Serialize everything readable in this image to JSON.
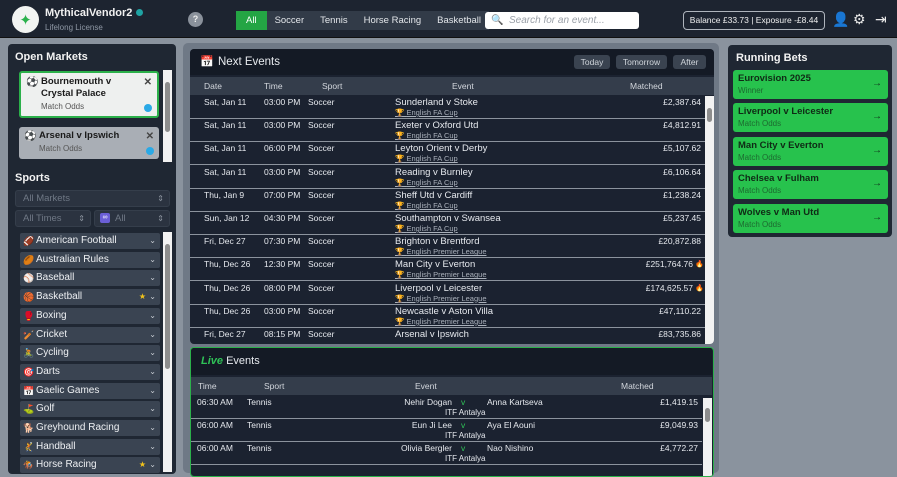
{
  "header": {
    "app_name": "MythicalVendor2",
    "license": "Lifelong License",
    "help": "?",
    "tabs": [
      "All",
      "Soccer",
      "Tennis",
      "Horse Racing",
      "Basketball"
    ],
    "search_placeholder": "Search for an event...",
    "balance": "Balance £33.73  |  Exposure -£8.44"
  },
  "open_markets": {
    "title": "Open Markets",
    "items": [
      {
        "event": "Bournemouth v Crystal Palace",
        "market": "Match Odds"
      },
      {
        "event": "Arsenal v Ipswich",
        "market": "Match Odds"
      }
    ]
  },
  "sports": {
    "title": "Sports",
    "markets_select": "All Markets",
    "times_select": "All Times",
    "type_select": "All",
    "items": [
      {
        "name": "American Football",
        "icon": "🏈"
      },
      {
        "name": "Australian Rules",
        "icon": "🏉"
      },
      {
        "name": "Baseball",
        "icon": "⚾"
      },
      {
        "name": "Basketball",
        "icon": "🏀",
        "starred": true
      },
      {
        "name": "Boxing",
        "icon": "🥊"
      },
      {
        "name": "Cricket",
        "icon": "🏏"
      },
      {
        "name": "Cycling",
        "icon": "🚴"
      },
      {
        "name": "Darts",
        "icon": "🎯"
      },
      {
        "name": "Gaelic Games",
        "icon": "📅"
      },
      {
        "name": "Golf",
        "icon": "⛳"
      },
      {
        "name": "Greyhound Racing",
        "icon": "🐕"
      },
      {
        "name": "Handball",
        "icon": "🤾"
      },
      {
        "name": "Horse Racing",
        "icon": "🏇",
        "starred": true
      }
    ]
  },
  "next_events": {
    "title": "Next Events",
    "filters": [
      "Today",
      "Tomorrow",
      "After"
    ],
    "columns": [
      "Date",
      "Time",
      "Sport",
      "Event",
      "Matched"
    ],
    "rows": [
      {
        "date": "Sat, Jan 11",
        "time": "03:00 PM",
        "sport": "Soccer",
        "event": "Sunderland v Stoke",
        "competition": "English FA Cup",
        "matched": "£2,387.64"
      },
      {
        "date": "Sat, Jan 11",
        "time": "03:00 PM",
        "sport": "Soccer",
        "event": "Exeter v Oxford Utd",
        "competition": "English FA Cup",
        "matched": "£4,812.91"
      },
      {
        "date": "Sat, Jan 11",
        "time": "06:00 PM",
        "sport": "Soccer",
        "event": "Leyton Orient v Derby",
        "competition": "English FA Cup",
        "matched": "£5,107.62"
      },
      {
        "date": "Sat, Jan 11",
        "time": "03:00 PM",
        "sport": "Soccer",
        "event": "Reading v Burnley",
        "competition": "English FA Cup",
        "matched": "£6,106.64"
      },
      {
        "date": "Thu, Jan 9",
        "time": "07:00 PM",
        "sport": "Soccer",
        "event": "Sheff Utd v Cardiff",
        "competition": "English FA Cup",
        "matched": "£1,238.24"
      },
      {
        "date": "Sun, Jan 12",
        "time": "04:30 PM",
        "sport": "Soccer",
        "event": "Southampton v Swansea",
        "competition": "English FA Cup",
        "matched": "£5,237.45"
      },
      {
        "date": "Fri, Dec 27",
        "time": "07:30 PM",
        "sport": "Soccer",
        "event": "Brighton v Brentford",
        "competition": "English Premier League",
        "matched": "£20,872.88"
      },
      {
        "date": "Thu, Dec 26",
        "time": "12:30 PM",
        "sport": "Soccer",
        "event": "Man City v Everton",
        "competition": "English Premier League",
        "matched": "£251,764.76",
        "hot": true
      },
      {
        "date": "Thu, Dec 26",
        "time": "08:00 PM",
        "sport": "Soccer",
        "event": "Liverpool v Leicester",
        "competition": "English Premier League",
        "matched": "£174,625.57",
        "hot": true
      },
      {
        "date": "Thu, Dec 26",
        "time": "03:00 PM",
        "sport": "Soccer",
        "event": "Newcastle v Aston Villa",
        "competition": "English Premier League",
        "matched": "£47,110.22"
      },
      {
        "date": "Fri, Dec 27",
        "time": "08:15 PM",
        "sport": "Soccer",
        "event": "Arsenal v Ipswich",
        "competition": "",
        "matched": "£83,735.86"
      }
    ]
  },
  "live_events": {
    "title_live": "Live",
    "title_rest": "Events",
    "columns": [
      "Time",
      "Sport",
      "Event",
      "Matched"
    ],
    "rows": [
      {
        "time": "06:30 AM",
        "sport": "Tennis",
        "home": "Nehir Dogan",
        "vs": "v",
        "away": "Anna Kartseva",
        "competition": "ITF Antalya",
        "matched": "£1,419.15"
      },
      {
        "time": "06:00 AM",
        "sport": "Tennis",
        "home": "Eun Ji Lee",
        "vs": "v",
        "away": "Aya El Aouni",
        "competition": "ITF Antalya",
        "matched": "£9,049.93"
      },
      {
        "time": "06:00 AM",
        "sport": "Tennis",
        "home": "Olivia Bergler",
        "vs": "v",
        "away": "Nao Nishino",
        "competition": "ITF Antalya",
        "matched": "£4,772.27"
      }
    ]
  },
  "running_bets": {
    "title": "Running Bets",
    "items": [
      {
        "event": "Eurovision 2025",
        "market": "Winner"
      },
      {
        "event": "Liverpool v Leicester",
        "market": "Match Odds"
      },
      {
        "event": "Man City v Everton",
        "market": "Match Odds"
      },
      {
        "event": "Chelsea v Fulham",
        "market": "Match Odds"
      },
      {
        "event": "Wolves v Man Utd",
        "market": "Match Odds"
      }
    ]
  },
  "colors": {
    "accent": "#27c24d",
    "background": "#1f2733",
    "topbar": "#1d2430"
  }
}
